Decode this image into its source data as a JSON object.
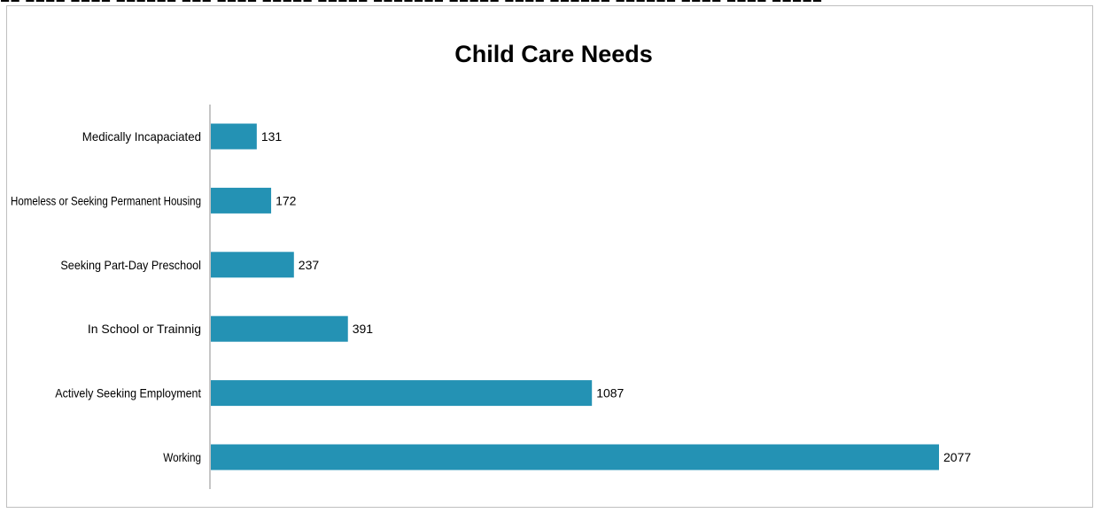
{
  "top_strip_text": "■■ ■■■■ ■■■■ ■■■■■■ ■■■ ■■■■ ■■■■■ ■■■■■ ■■■■■■■ ■■■■■ ■■■■ ■■■■■■ ■■■■■■ ■■■■ ■■■■ ■■■■■",
  "colors": {
    "bar": "#2492b4",
    "axis": "#8c8c8c",
    "frame": "#bfbfbf",
    "text": "#000000"
  },
  "chart_data": {
    "type": "bar",
    "orientation": "horizontal",
    "title": "Child Care Needs",
    "xlabel": "",
    "ylabel": "",
    "categories": [
      "Medically Incapaciated",
      "Homeless or Seeking Permanent Housing",
      "Seeking Part-Day Preschool",
      "In School or Trainnig",
      "Actively Seeking Employment",
      "Working"
    ],
    "values": [
      131,
      172,
      237,
      391,
      1087,
      2077
    ],
    "data_labels": [
      "131",
      "172",
      "237",
      "391",
      "1087",
      "2077"
    ],
    "xlim": [
      0,
      2077
    ],
    "grid": false,
    "legend": "none"
  }
}
